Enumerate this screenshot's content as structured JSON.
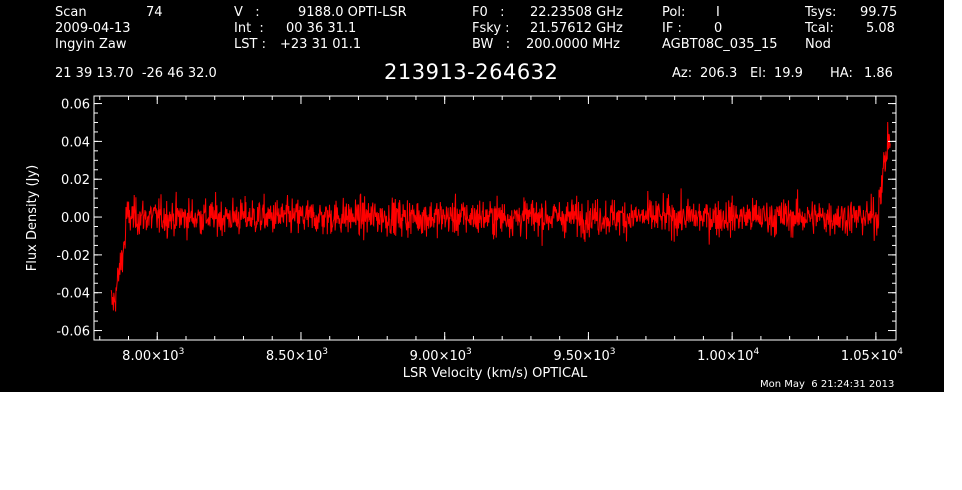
{
  "header": {
    "scan_label": "Scan",
    "scan_value": "74",
    "date": "2009-04-13",
    "observer": "Ingyin Zaw",
    "v_label": "V   :",
    "v_value": "9188.0 OPTI-LSR",
    "int_label": "Int  :",
    "int_value": "00 36 31.1",
    "lst_label": "LST :",
    "lst_value": "+23 31 01.1",
    "f0_label": "F0   :",
    "f0_value": "22.23508 GHz",
    "fsky_label": "Fsky :",
    "fsky_value": "21.57612 GHz",
    "bw_label": "BW   :",
    "bw_value": "200.0000 MHz",
    "pol_label": "Pol:",
    "pol_value": "I",
    "if_label": "IF :",
    "if_value": "0",
    "project": "AGBT08C_035_15",
    "tsys_label": "Tsys:",
    "tsys_value": "99.75",
    "tcal_label": "Tcal:",
    "tcal_value": "5.08",
    "mode": "Nod",
    "coords": "21 39 13.70  -26 46 32.0",
    "source": "213913-264632",
    "az_label": "Az:",
    "az_value": "206.3",
    "el_label": "El:",
    "el_value": "19.9",
    "ha_label": "HA:",
    "ha_value": "1.86",
    "timestamp": "Mon May  6 21:24:31 2013"
  },
  "chart_data": {
    "type": "line",
    "title": "213913-264632",
    "xlabel": "LSR Velocity (km/s) OPTICAL",
    "ylabel": "Flux Density (Jy)",
    "xlim": [
      7780,
      10570
    ],
    "ylim": [
      -0.065,
      0.064
    ],
    "xticks": [
      {
        "value": 8000,
        "mant": "8.00",
        "exp": "3"
      },
      {
        "value": 8500,
        "mant": "8.50",
        "exp": "3"
      },
      {
        "value": 9000,
        "mant": "9.00",
        "exp": "3"
      },
      {
        "value": 9500,
        "mant": "9.50",
        "exp": "3"
      },
      {
        "value": 10000,
        "mant": "1.00",
        "exp": "4"
      },
      {
        "value": 10500,
        "mant": "1.05",
        "exp": "4"
      }
    ],
    "yticks": [
      {
        "value": 0.06,
        "label": "0.06"
      },
      {
        "value": 0.04,
        "label": "0.04"
      },
      {
        "value": 0.02,
        "label": "0.02"
      },
      {
        "value": 0.0,
        "label": "0.00"
      },
      {
        "value": -0.02,
        "label": "-0.02"
      },
      {
        "value": -0.04,
        "label": "-0.04"
      },
      {
        "value": -0.06,
        "label": "-0.06"
      }
    ],
    "series": [
      {
        "color": "#ff0000",
        "x_start": 7840,
        "x_end": 10550,
        "noise_rms": 0.008,
        "edge_features": [
          {
            "x": 7850,
            "y": -0.045
          },
          {
            "x": 7890,
            "y": -0.01
          },
          {
            "x": 10510,
            "y": 0.01
          },
          {
            "x": 10545,
            "y": 0.041
          }
        ]
      }
    ],
    "grid": false
  },
  "colors": {
    "background": "#000000",
    "axes": "#ffffff",
    "trace": "#ff0000"
  }
}
